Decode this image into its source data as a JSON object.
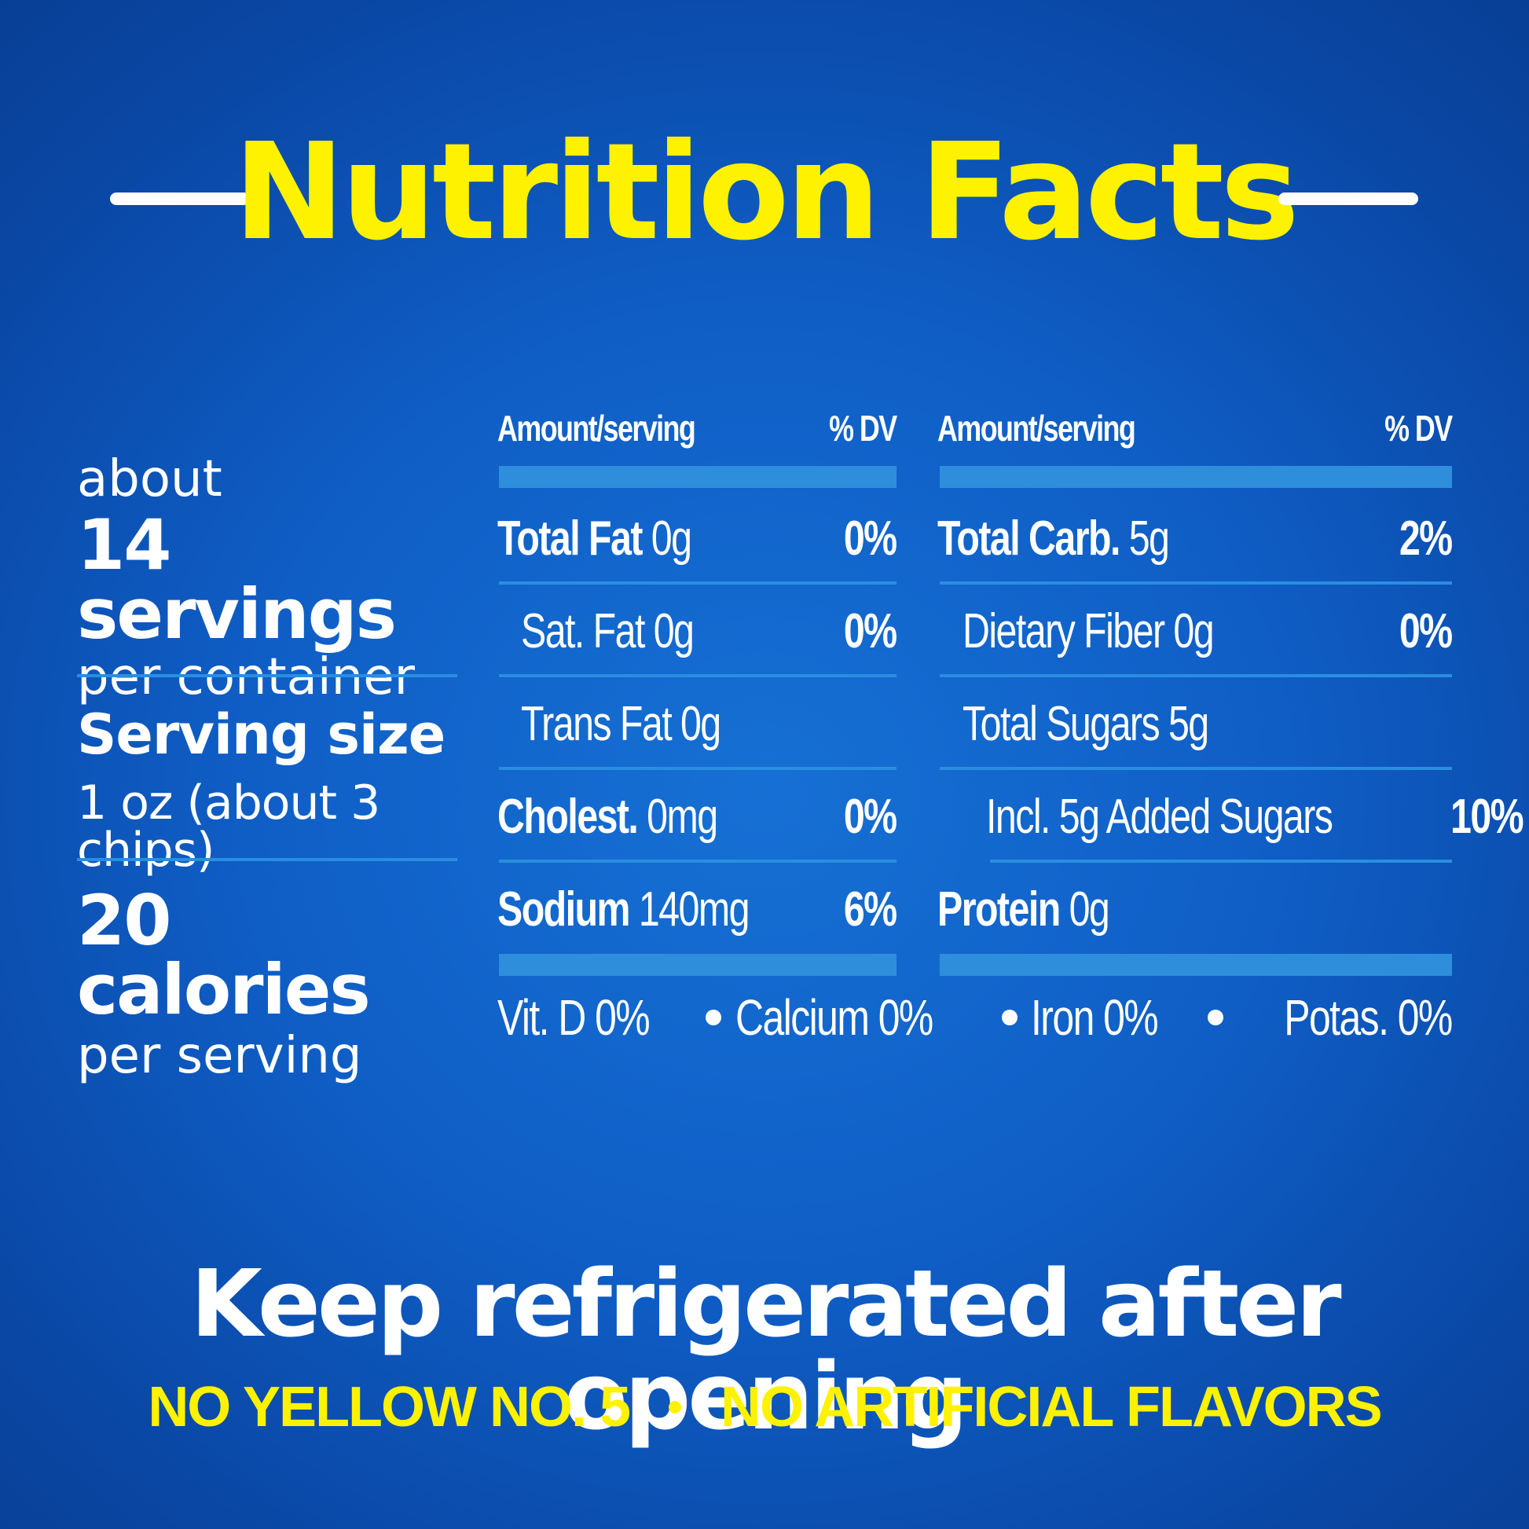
{
  "title": "Nutrition Facts",
  "serving_info": {
    "servings_prefix": "about",
    "servings_count": "14 servings",
    "servings_suffix": "per container",
    "serving_size_label": "Serving size",
    "serving_size_value": "1 oz (about 3 chips)",
    "calories": "20 calories",
    "calories_suffix": "per serving"
  },
  "table_left": {
    "header_amount": "Amount/serving",
    "header_dv": "% DV",
    "rows": [
      {
        "bold": "Total Fat",
        "amount": "0g",
        "dv": "0%"
      },
      {
        "bold": "",
        "amount": "Sat. Fat 0g",
        "dv": "0%"
      },
      {
        "bold": "",
        "amount": "Trans Fat 0g",
        "dv": ""
      },
      {
        "bold": "Cholest.",
        "amount": "0mg",
        "dv": "0%"
      },
      {
        "bold": "Sodium",
        "amount": "140mg",
        "dv": "6%"
      }
    ]
  },
  "table_right": {
    "header_amount": "Amount/serving",
    "header_dv": "% DV",
    "rows": [
      {
        "bold": "Total Carb.",
        "amount": "5g",
        "dv": "2%"
      },
      {
        "bold": "",
        "amount": "Dietary Fiber 0g",
        "dv": "0%"
      },
      {
        "bold": "",
        "amount": "Total Sugars 5g",
        "dv": ""
      },
      {
        "bold": "",
        "amount": "Incl. 5g Added Sugars",
        "dv": "10%"
      },
      {
        "bold": "Protein",
        "amount": "0g",
        "dv": ""
      }
    ]
  },
  "vitamins": [
    "Vit. D 0%",
    "Calcium 0%",
    "Iron 0%",
    "Potas. 0%"
  ],
  "footer": {
    "storage": "Keep refrigerated after opening",
    "claim_1": "NO YELLOW NO. 5",
    "claim_2": "NO ARTIFICIAL FLAVORS"
  },
  "colors": {
    "background": "#0f5ec6",
    "title": "#fff200",
    "rule": "#2f8edc",
    "text": "#ffffff"
  }
}
